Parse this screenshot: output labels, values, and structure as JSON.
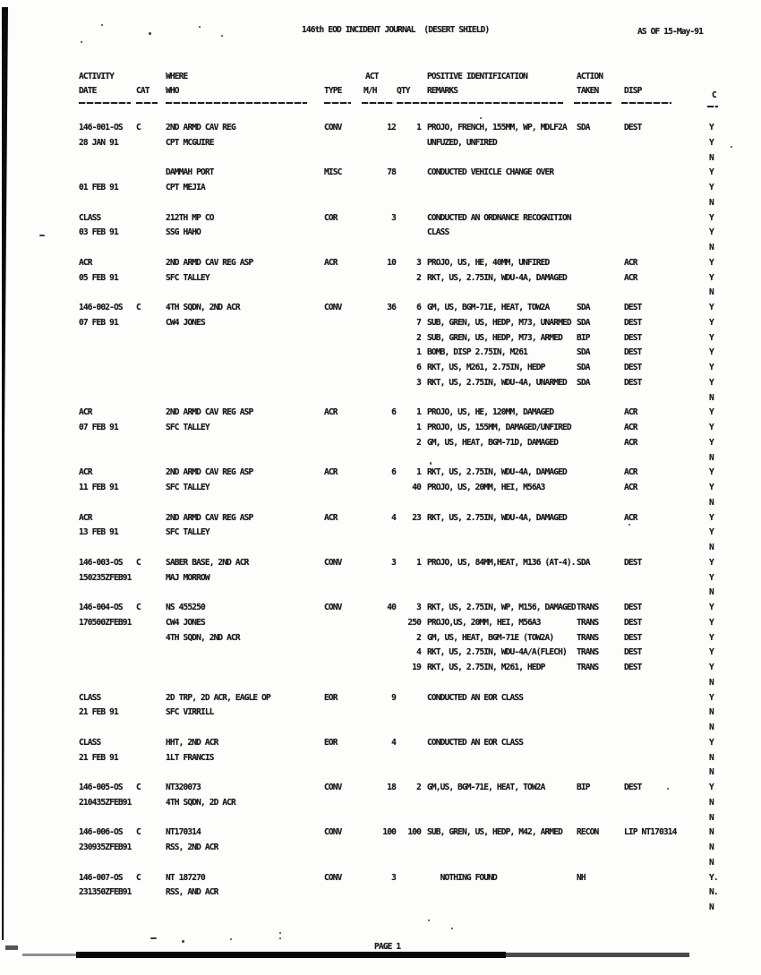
{
  "page": {
    "title": "146th EOD INCIDENT JOURNAL  (DESERT SHIELD)",
    "as_of": "AS OF 15-May-91",
    "footer": "PAGE 1"
  },
  "table": {
    "headers": {
      "activity": "ACTIVITY",
      "date": "DATE",
      "cat": "CAT",
      "where": "WHERE",
      "who": "WHO",
      "type": "TYPE",
      "act": "ACT",
      "mh": "M/H",
      "qty": "QTY",
      "pos_id": "POSITIVE IDENTIFICATION",
      "remarks": "REMARKS",
      "action": "ACTION",
      "taken": "TAKEN",
      "disp": "DISP",
      "c": "C"
    },
    "entries": [
      {
        "lines": [
          {
            "id": "146-001-OS",
            "cat": "C",
            "where": "2ND ARMD CAV REG",
            "type": "CONV",
            "mh": "12",
            "qty": "1",
            "remark": "PROJO, FRENCH, 155MM, WP, MDLF2A",
            "action": "SDA",
            "disp": "DEST",
            "c": "Y"
          },
          {
            "id": "28 JAN 91",
            "where": "CPT MCGUIRE",
            "remark": "UNFUZED, UNFIRED",
            "c": "Y"
          },
          {
            "c": "N"
          }
        ]
      },
      {
        "lines": [
          {
            "where": "DAMMAH PORT",
            "type": "MISC",
            "mh": "78",
            "remark": "CONDUCTED VEHICLE CHANGE OVER",
            "c": "Y"
          },
          {
            "id": "01 FEB 91",
            "where": "CPT MEJIA",
            "c": "Y"
          },
          {
            "c": "N"
          }
        ]
      },
      {
        "lines": [
          {
            "id": "CLASS",
            "where": "212TH MP CO",
            "type": "COR",
            "mh": "3",
            "remark": "CONDUCTED AN ORDNANCE RECOGNITION",
            "c": "Y"
          },
          {
            "id": "03 FEB 91",
            "where": "SSG HAHO",
            "remark": "CLASS",
            "c": "Y"
          },
          {
            "c": "N"
          }
        ]
      },
      {
        "lines": [
          {
            "id": "ACR",
            "where": "2ND ARMD CAV REG ASP",
            "type": "ACR",
            "mh": "10",
            "qty": "3",
            "remark": "PROJO, US, HE, 40MM, UNFIRED",
            "disp": "ACR",
            "c": "Y"
          },
          {
            "id": "05 FEB 91",
            "where": "SFC TALLEY",
            "qty": "2",
            "remark": "RKT, US, 2.75IN, WDU-4A, DAMAGED",
            "disp": "ACR",
            "c": "Y"
          },
          {
            "c": "N"
          }
        ]
      },
      {
        "lines": [
          {
            "id": "146-002-OS",
            "cat": "C",
            "where": "4TH SQDN, 2ND ACR",
            "type": "CONV",
            "mh": "36",
            "qty": "6",
            "remark": "GM, US, BGM-71E, HEAT, TOW2A",
            "action": "SDA",
            "disp": "DEST",
            "c": "Y"
          },
          {
            "id": "07 FEB 91",
            "where": "CW4 JONES",
            "qty": "7",
            "remark": "SUB, GREN, US, HEDP, M73, UNARMED",
            "action": "SDA",
            "disp": "DEST",
            "c": "Y"
          },
          {
            "qty": "2",
            "remark": "SUB, GREN, US, HEDP, M73, ARMED",
            "action": "BIP",
            "disp": "DEST",
            "c": "Y"
          },
          {
            "qty": "1",
            "remark": "BOMB, DISP 2.75IN, M261",
            "action": "SDA",
            "disp": "DEST",
            "c": "Y"
          },
          {
            "qty": "6",
            "remark": "RKT, US, M261, 2.75IN, HEDP",
            "action": "SDA",
            "disp": "DEST",
            "c": "Y"
          },
          {
            "qty": "3",
            "remark": "RKT, US, 2.75IN, WDU-4A, UNARMED",
            "action": "SDA",
            "disp": "DEST",
            "c": "Y"
          },
          {
            "c": "N"
          }
        ]
      },
      {
        "lines": [
          {
            "id": "ACR",
            "where": "2ND ARMD CAV REG ASP",
            "type": "ACR",
            "mh": "6",
            "qty": "1",
            "remark": "PROJO, US, HE, 120MM, DAMAGED",
            "disp": "ACR",
            "c": "Y"
          },
          {
            "id": "07 FEB 91",
            "where": "SFC TALLEY",
            "qty": "1",
            "remark": "PROJO, US, 155MM, DAMAGED/UNFIRED",
            "disp": "ACR",
            "c": "Y"
          },
          {
            "qty": "2",
            "remark": "GM, US, HEAT, BGM-71D, DAMAGED",
            "disp": "ACR",
            "c": "Y"
          },
          {
            "c": "N"
          }
        ]
      },
      {
        "lines": [
          {
            "id": "ACR",
            "where": "2ND ARMD CAV REG ASP",
            "type": "ACR",
            "mh": "6",
            "qty": "1",
            "remark": "RKT, US, 2.75IN, WDU-4A, DAMAGED",
            "disp": "ACR",
            "c": "Y"
          },
          {
            "id": "11 FEB 91",
            "where": "SFC TALLEY",
            "qty": "40",
            "remark": "PROJO, US, 20MM, HEI, M56A3",
            "disp": "ACR",
            "c": "Y"
          },
          {
            "c": "N"
          }
        ]
      },
      {
        "lines": [
          {
            "id": "ACR",
            "where": "2ND ARMD CAV REG ASP",
            "type": "ACR",
            "mh": "4",
            "qty": "23",
            "remark": "RKT, US, 2.75IN, WDU-4A, DAMAGED",
            "disp": "ACR",
            "c": "Y"
          },
          {
            "id": "13 FEB 91",
            "where": "SFC TALLEY",
            "c": "Y"
          },
          {
            "c": "N"
          }
        ]
      },
      {
        "lines": [
          {
            "id": "146-003-OS",
            "cat": "C",
            "where": "SABER BASE, 2ND ACR",
            "type": "CONV",
            "mh": "3",
            "qty": "1",
            "remark": "PROJO, US, 84MM,HEAT, M136 (AT-4).",
            "action": "SDA",
            "disp": "DEST",
            "c": "Y"
          },
          {
            "id": "150235ZFEB91",
            "where": "MAJ MORROW",
            "c": "Y"
          },
          {
            "c": "N"
          }
        ]
      },
      {
        "lines": [
          {
            "id": "146-004-OS",
            "cat": "C",
            "where": "NS 455250",
            "type": "CONV",
            "mh": "40",
            "qty": "3",
            "remark": "RKT, US, 2.75IN, WP, M156, DAMAGED",
            "action": "TRANS",
            "disp": "DEST",
            "c": "Y"
          },
          {
            "id": "170500ZFEB91",
            "where": "CW4 JONES",
            "qty": "250",
            "remark": "PROJO,US, 20MM, HEI, M56A3",
            "action": "TRANS",
            "disp": "DEST",
            "c": "Y"
          },
          {
            "where": "4TH SQDN, 2ND ACR",
            "qty": "2",
            "remark": "GM, US, HEAT, BGM-71E (TOW2A)",
            "action": "TRANS",
            "disp": "DEST",
            "c": "Y"
          },
          {
            "qty": "4",
            "remark": "RKT, US, 2.75IN, WDU-4A/A(FLECH)",
            "action": "TRANS",
            "disp": "DEST",
            "c": "Y"
          },
          {
            "qty": "19",
            "remark": "RKT, US, 2.75IN, M261, HEDP",
            "action": "TRANS",
            "disp": "DEST",
            "c": "Y"
          },
          {
            "c": "N"
          }
        ]
      },
      {
        "lines": [
          {
            "id": "CLASS",
            "where": "2D TRP, 2D ACR, EAGLE OP",
            "type": "EOR",
            "mh": "9",
            "remark": "CONDUCTED AN EOR CLASS",
            "c": "Y"
          },
          {
            "id": "21 FEB 91",
            "where": "SFC VIRRILL",
            "c": "N"
          },
          {
            "c": "N"
          }
        ]
      },
      {
        "lines": [
          {
            "id": "CLASS",
            "where": "HHT, 2ND ACR",
            "type": "EOR",
            "mh": "4",
            "remark": "CONDUCTED AN EOR CLASS",
            "c": "Y"
          },
          {
            "id": "21 FEB 91",
            "where": "1LT FRANCIS",
            "c": "N"
          },
          {
            "c": "N"
          }
        ]
      },
      {
        "lines": [
          {
            "id": "146-005-OS",
            "cat": "C",
            "where": "NT320073",
            "type": "CONV",
            "mh": "18",
            "qty": "2",
            "remark": "GM,US, BGM-71E, HEAT, TOW2A",
            "action": "BIP",
            "disp": "DEST",
            "c": "Y"
          },
          {
            "id": "210435ZFEB91",
            "where": "4TH SQDN, 2D ACR",
            "c": "N"
          },
          {
            "c": "N"
          }
        ]
      },
      {
        "lines": [
          {
            "id": "146-006-OS",
            "cat": "C",
            "where": "NT170314",
            "type": "CONV",
            "mh": "100",
            "qty": "100",
            "remark": "SUB, GREN, US, HEDP, M42, ARMED",
            "action": "RECON",
            "disp": "LIP NT170314",
            "c": "N"
          },
          {
            "id": "230935ZFEB91",
            "where": "RSS, 2ND ACR",
            "c": "N"
          },
          {
            "c": "N"
          }
        ]
      },
      {
        "lines": [
          {
            "id": "146-007-OS",
            "cat": "C",
            "where": "NT 187270",
            "type": "CONV",
            "mh": "3",
            "remark": "   NOTHING FOUND",
            "action": "NH",
            "c": "Y."
          },
          {
            "id": "231350ZFEB91",
            "where": "RSS, AND ACR",
            "c": "N."
          },
          {
            "c": "N"
          }
        ]
      }
    ]
  }
}
